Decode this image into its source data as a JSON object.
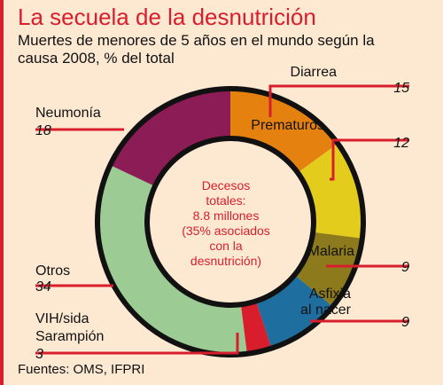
{
  "title": "La secuela de la desnutrición",
  "subtitle": "Muertes de menores de 5 años en el mundo según la causa 2008, % del total",
  "source": "Fuentes: OMS, IFPRI",
  "center_text": [
    "Decesos",
    "totales:",
    "8.8 millones",
    "(35% asociados",
    "con la",
    "desnutrición)"
  ],
  "colors": {
    "accent": "#d81e2c",
    "background": "#fde9d2"
  },
  "chart_data": {
    "type": "pie",
    "donut": true,
    "unit": "% del total",
    "slices": [
      {
        "label": "Diarrea",
        "value": 15,
        "color": "#e4810f"
      },
      {
        "label": "Prematuros",
        "value": 12,
        "color": "#e4cc1c"
      },
      {
        "label": "Malaria",
        "value": 9,
        "color": "#8c7a1c"
      },
      {
        "label": "Asfixia al nacer",
        "value": 9,
        "color": "#1e6ea0"
      },
      {
        "label": "VIH/sida Sarampión",
        "value": 3,
        "color": "#d81e2c"
      },
      {
        "label": "Otros",
        "value": 34,
        "color": "#9ccc94"
      },
      {
        "label": "Neumonía",
        "value": 18,
        "color": "#8b1c55"
      }
    ]
  }
}
